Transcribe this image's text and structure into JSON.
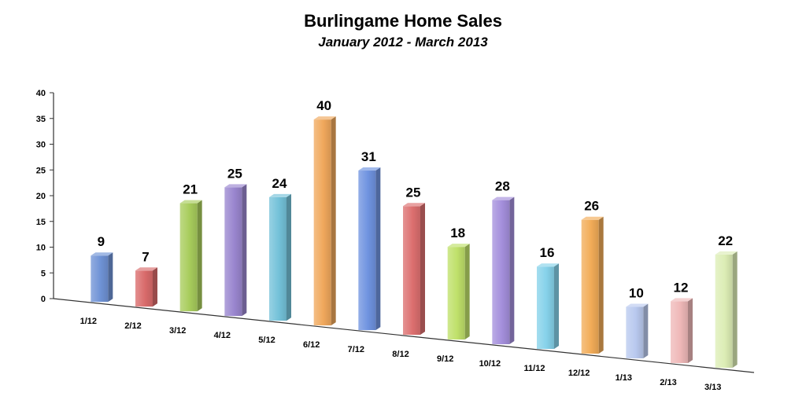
{
  "chart_data": {
    "type": "bar",
    "title": "Burlingame Home Sales",
    "subtitle": "January 2012 - March 2013",
    "categories": [
      "1/12",
      "2/12",
      "3/12",
      "4/12",
      "5/12",
      "6/12",
      "7/12",
      "8/12",
      "9/12",
      "10/12",
      "11/12",
      "12/12",
      "1/13",
      "2/13",
      "3/13"
    ],
    "values": [
      9,
      7,
      21,
      25,
      24,
      40,
      31,
      25,
      18,
      28,
      16,
      26,
      10,
      12,
      22
    ],
    "ylim": [
      0,
      40
    ],
    "yticks": [
      0,
      5,
      10,
      15,
      20,
      25,
      30,
      35,
      40
    ],
    "data_labels": true,
    "three_d": true,
    "grid": false,
    "colors": [
      "#6f93d6",
      "#d96b6b",
      "#a8cc5c",
      "#9a86cf",
      "#74c2d9",
      "#f0a85c",
      "#6f93e0",
      "#dc6f6f",
      "#bfe06a",
      "#a48fdc",
      "#86d2ea",
      "#f2ac58",
      "#b9c9ef",
      "#efb8b8",
      "#dcedb5"
    ]
  }
}
